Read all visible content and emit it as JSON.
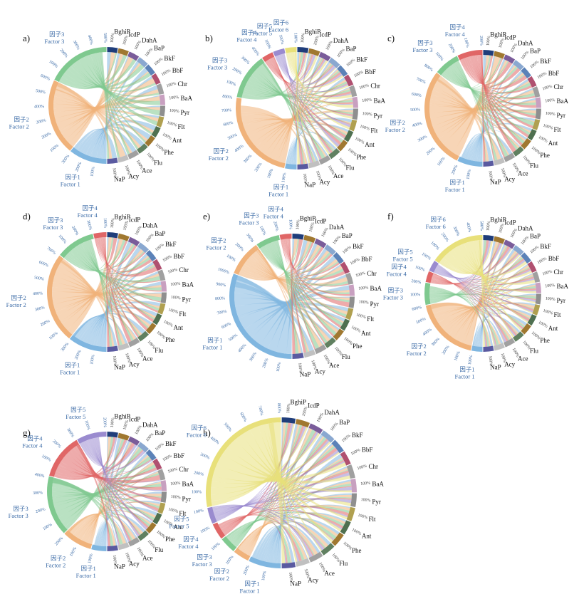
{
  "colors": {
    "factors": [
      "#7fb6e0",
      "#f0b27a",
      "#7fc98f",
      "#e06666",
      "#9a8bcf",
      "#e8e07a"
    ],
    "pah": [
      "#1f3d7a",
      "#a07830",
      "#7a5c9a",
      "#8aa8d0",
      "#5c82b8",
      "#b05070",
      "#a0a0a0",
      "#c8a0c0",
      "#8f8f8f",
      "#b0a050",
      "#4f7050",
      "#a07830",
      "#608060",
      "#a0a0a0",
      "#c0c0c0",
      "#5a5aa0"
    ],
    "factor_text": "#3a6aa6"
  },
  "chart_data": [
    {
      "type": "chord",
      "panel": "a)",
      "pah_labels": [
        "BghiP",
        "IcdP",
        "DahA",
        "BaP",
        "BkF",
        "BbF",
        "Chr",
        "BaA",
        "Pyr",
        "Flt",
        "Ant",
        "Phe",
        "Flu",
        "Ace",
        "Acy",
        "NaP"
      ],
      "pah_pct": "100%",
      "factors": [
        {
          "cn": "因子1",
          "en": "Factor 1",
          "ticks": [
            "100%",
            "200%",
            "300%"
          ]
        },
        {
          "cn": "因子2",
          "en": "Factor 2",
          "ticks": [
            "100%",
            "200%",
            "300%",
            "400%",
            "500%",
            "600%"
          ]
        },
        {
          "cn": "因子3",
          "en": "Factor 3",
          "ticks": [
            "100%",
            "200%",
            "300%",
            "400%",
            "500%"
          ]
        }
      ]
    },
    {
      "type": "chord",
      "panel": "b)",
      "pah_labels": [
        "BghiP",
        "IcdP",
        "DahA",
        "BaP",
        "BkF",
        "BbF",
        "Chr",
        "BaA",
        "Pyr",
        "Flt",
        "Ant",
        "Phe",
        "Flu",
        "Ace",
        "Acy",
        "NaP"
      ],
      "pah_pct": "100%",
      "factors": [
        {
          "cn": "因子1",
          "en": "Factor 1",
          "ticks": [
            "100%"
          ]
        },
        {
          "cn": "因子2",
          "en": "Factor 2",
          "ticks": [
            "100%",
            "200%",
            "300%",
            "400%",
            "500%",
            "600%",
            "700%",
            "800%"
          ]
        },
        {
          "cn": "因子3",
          "en": "Factor 3",
          "ticks": [
            "100%",
            "200%",
            "300%",
            "400%"
          ]
        },
        {
          "cn": "因子4",
          "en": "Factor 4",
          "ticks": [
            "100%"
          ]
        },
        {
          "cn": "因子5",
          "en": "Factor 5",
          "ticks": [
            "100%"
          ]
        },
        {
          "cn": "因子6",
          "en": "Factor 6",
          "ticks": [
            "100%"
          ]
        }
      ]
    },
    {
      "type": "chord",
      "panel": "c)",
      "pah_labels": [
        "BghiP",
        "IcdP",
        "DahA",
        "BaP",
        "BkF",
        "BbF",
        "Chr",
        "BaA",
        "Pyr",
        "Flt",
        "Ant",
        "Phe",
        "Flu",
        "Ace",
        "Acy",
        "NaP"
      ],
      "pah_pct": "100%",
      "factors": [
        {
          "cn": "因子1",
          "en": "Factor 1",
          "ticks": [
            "100%",
            "200%"
          ]
        },
        {
          "cn": "因子2",
          "en": "Factor 2",
          "ticks": [
            "100%",
            "200%",
            "300%",
            "400%",
            "500%",
            "600%",
            "700%",
            "800%"
          ]
        },
        {
          "cn": "因子3",
          "en": "Factor 3",
          "ticks": [
            "100%",
            "200%"
          ]
        },
        {
          "cn": "因子4",
          "en": "Factor 4",
          "ticks": [
            "100%",
            "200%"
          ]
        }
      ]
    },
    {
      "type": "chord",
      "panel": "d)",
      "pah_labels": [
        "BghiP",
        "IcdP",
        "DahA",
        "BaP",
        "BkF",
        "BbF",
        "Chr",
        "BaA",
        "Pyr",
        "Flt",
        "Ant",
        "Phe",
        "Flu",
        "Ace",
        "Acy",
        "NaP"
      ],
      "pah_pct": "100%",
      "factors": [
        {
          "cn": "因子1",
          "en": "Factor 1",
          "ticks": [
            "100%",
            "200%",
            "300%"
          ]
        },
        {
          "cn": "因子2",
          "en": "Factor 2",
          "ticks": [
            "100%",
            "200%",
            "300%",
            "400%",
            "500%",
            "600%",
            "700%"
          ]
        },
        {
          "cn": "因子3",
          "en": "Factor 3",
          "ticks": [
            "100%",
            "200%",
            "300%"
          ]
        },
        {
          "cn": "因子4",
          "en": "Factor 4",
          "ticks": [
            "100%"
          ]
        }
      ]
    },
    {
      "type": "chord",
      "panel": "e)",
      "pah_labels": [
        "BghiP",
        "IcdP",
        "DahA",
        "BaP",
        "BkF",
        "BbF",
        "Chr",
        "BaA",
        "Pyr",
        "Flt",
        "Ant",
        "Phe",
        "Flu",
        "Ace",
        "Acy",
        "NaP"
      ],
      "pah_pct": "100%",
      "factors": [
        {
          "cn": "因子1",
          "en": "Factor 1",
          "ticks": [
            "100%",
            "200%",
            "300%",
            "400%",
            "500%",
            "600%",
            "700%",
            "800%",
            "900%",
            "1000%"
          ]
        },
        {
          "cn": "因子2",
          "en": "Factor 2",
          "ticks": [
            "100%",
            "200%",
            "300%"
          ]
        },
        {
          "cn": "因子3",
          "en": "Factor 3",
          "ticks": [
            "100%",
            "200%"
          ]
        },
        {
          "cn": "因子4",
          "en": "Factor 4",
          "ticks": [
            "100%"
          ]
        }
      ]
    },
    {
      "type": "chord",
      "panel": "f)",
      "pah_labels": [
        "BghiP",
        "IcdP",
        "DahA",
        "BaP",
        "BkF",
        "BbF",
        "Chr",
        "BaA",
        "Pyr",
        "Flt",
        "Ant",
        "Phe",
        "Flu",
        "Ace",
        "Acy",
        "NaP"
      ],
      "pah_pct": "100%",
      "factors": [
        {
          "cn": "因子1",
          "en": "Factor 1",
          "ticks": [
            "100%"
          ]
        },
        {
          "cn": "因子2",
          "en": "Factor 2",
          "ticks": [
            "100%",
            "200%",
            "300%",
            "400%",
            "500%",
            "600%"
          ]
        },
        {
          "cn": "因子3",
          "en": "Factor 3",
          "ticks": [
            "100%",
            "200%"
          ]
        },
        {
          "cn": "因子4",
          "en": "Factor 4",
          "ticks": [
            "100%"
          ]
        },
        {
          "cn": "因子5",
          "en": "Factor 5",
          "ticks": [
            "100%"
          ]
        },
        {
          "cn": "因子6",
          "en": "Factor 6",
          "ticks": [
            "100%",
            "200%",
            "300%",
            "400%",
            "500%"
          ]
        }
      ]
    },
    {
      "type": "chord",
      "panel": "g)",
      "pah_labels": [
        "BghiP",
        "IcdP",
        "DahA",
        "BaP",
        "BkF",
        "BbF",
        "Chr",
        "BaA",
        "Pyr",
        "Flt",
        "Ant",
        "Phe",
        "Flu",
        "Ace",
        "Acy",
        "NaP"
      ],
      "pah_pct": "100%",
      "factors": [
        {
          "cn": "因子1",
          "en": "Factor 1",
          "ticks": [
            "100%"
          ]
        },
        {
          "cn": "因子2",
          "en": "Factor 2",
          "ticks": [
            "100%",
            "200%"
          ]
        },
        {
          "cn": "因子3",
          "en": "Factor 3",
          "ticks": [
            "100%",
            "200%",
            "300%",
            "400%"
          ]
        },
        {
          "cn": "因子4",
          "en": "Factor 4",
          "ticks": [
            "100%",
            "200%",
            "300%"
          ]
        },
        {
          "cn": "因子5",
          "en": "Factor 5",
          "ticks": [
            "100%",
            "200%"
          ]
        }
      ]
    },
    {
      "type": "chord",
      "panel": "h)",
      "pah_labels": [
        "BghiP",
        "IcdP",
        "DahA",
        "BaP",
        "BkF",
        "BbF",
        "Chr",
        "BaA",
        "Pyr",
        "Flt",
        "Ant",
        "Phe",
        "Flu",
        "Ace",
        "Acy",
        "NaP"
      ],
      "pah_pct": "100%",
      "factors": [
        {
          "cn": "因子1",
          "en": "Factor 1",
          "ticks": [
            "100%",
            "200%"
          ]
        },
        {
          "cn": "因子2",
          "en": "Factor 2",
          "ticks": [
            "100%"
          ]
        },
        {
          "cn": "因子3",
          "en": "Factor 3",
          "ticks": [
            "100%"
          ]
        },
        {
          "cn": "因子4",
          "en": "Factor 4",
          "ticks": [
            "100%"
          ]
        },
        {
          "cn": "因子5",
          "en": "Factor 5",
          "ticks": [
            "100%"
          ]
        },
        {
          "cn": "因子6",
          "en": "Factor 6",
          "ticks": [
            "100%",
            "200%",
            "300%",
            "400%",
            "500%",
            "600%",
            "700%",
            "800%"
          ]
        }
      ]
    }
  ]
}
